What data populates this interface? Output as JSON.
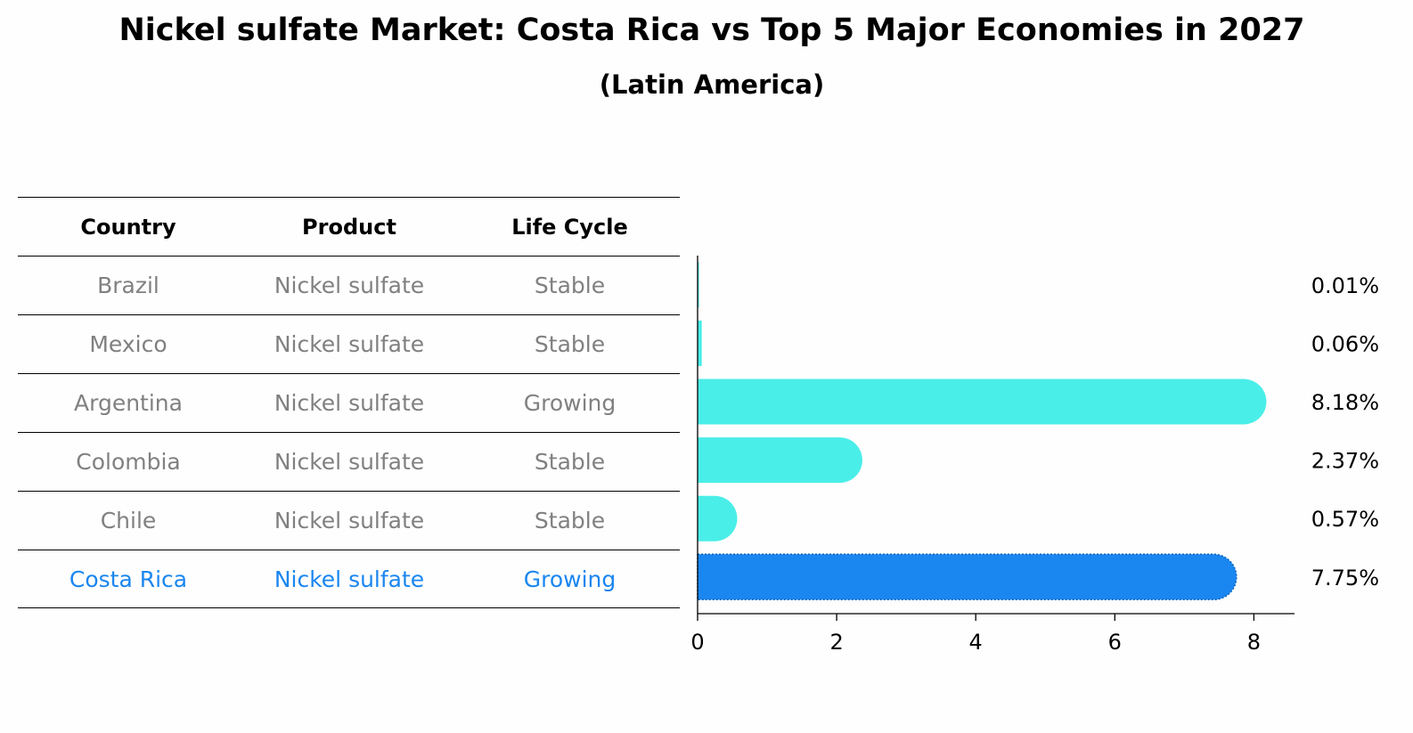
{
  "title": "Nickel sulfate Market: Costa Rica vs Top 5 Major Economies in 2027",
  "subtitle": "(Latin America)",
  "table": {
    "headers": [
      "Country",
      "Product",
      "Life Cycle"
    ],
    "rows": [
      {
        "country": "Brazil",
        "product": "Nickel sulfate",
        "life_cycle": "Stable"
      },
      {
        "country": "Mexico",
        "product": "Nickel sulfate",
        "life_cycle": "Stable"
      },
      {
        "country": "Argentina",
        "product": "Nickel sulfate",
        "life_cycle": "Growing"
      },
      {
        "country": "Colombia",
        "product": "Nickel sulfate",
        "life_cycle": "Stable"
      },
      {
        "country": "Chile",
        "product": "Nickel sulfate",
        "life_cycle": "Stable"
      },
      {
        "country": "Costa Rica",
        "product": "Nickel sulfate",
        "life_cycle": "Growing"
      }
    ]
  },
  "colors": {
    "bar": "#4aeee8",
    "highlight": "#1a86f0",
    "muted_text": "#808080"
  },
  "chart_data": {
    "type": "bar",
    "orientation": "horizontal",
    "categories": [
      "Brazil",
      "Mexico",
      "Argentina",
      "Colombia",
      "Chile",
      "Costa Rica"
    ],
    "values": [
      0.01,
      0.06,
      8.18,
      2.37,
      0.57,
      7.75
    ],
    "value_labels": [
      "0.01%",
      "0.06%",
      "8.18%",
      "2.37%",
      "0.57%",
      "7.75%"
    ],
    "highlight": "Costa Rica",
    "xlim": [
      0,
      8.6
    ],
    "xticks": [
      0,
      2,
      4,
      6,
      8
    ],
    "xlabel": "",
    "ylabel": ""
  }
}
